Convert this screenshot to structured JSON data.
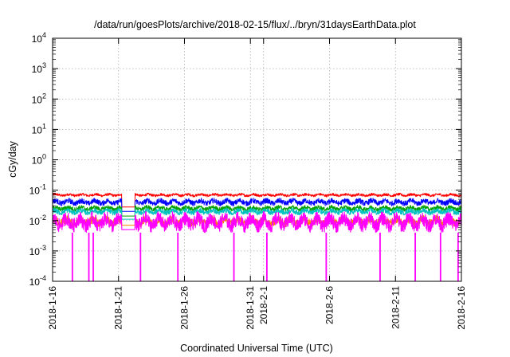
{
  "chart_data": {
    "type": "line",
    "title": "/data/run/goesPlots/archive/2018-02-15/flux/../bryn/31daysEarthData.plot",
    "xlabel": "Coordinated Universal Time (UTC)",
    "ylabel": "cGy/day",
    "x_scale": "time",
    "y_scale": "log",
    "xlim": [
      "2018-01-16",
      "2018-02-16"
    ],
    "ylim": [
      0.0001,
      10000
    ],
    "grid": true,
    "legend": "none",
    "x_ticks": [
      "2018-1-16",
      "2018-1-21",
      "2018-1-26",
      "2018-1-31",
      "2018-2-1",
      "2018-2-6",
      "2018-2-11",
      "2018-2-16"
    ],
    "y_ticks": [
      {
        "value": 0.0001,
        "base": "10",
        "exp": "-4"
      },
      {
        "value": 0.001,
        "base": "10",
        "exp": "-3"
      },
      {
        "value": 0.01,
        "base": "10",
        "exp": "-2"
      },
      {
        "value": 0.1,
        "base": "10",
        "exp": "-1"
      },
      {
        "value": 1,
        "base": "10",
        "exp": "0"
      },
      {
        "value": 10,
        "base": "10",
        "exp": "1"
      },
      {
        "value": 100,
        "base": "10",
        "exp": "2"
      },
      {
        "value": 1000,
        "base": "10",
        "exp": "3"
      },
      {
        "value": 10000,
        "base": "10",
        "exp": "4"
      }
    ],
    "gap": {
      "start": "2018-01-21 06:00",
      "end": "2018-01-22 06:00"
    },
    "series": [
      {
        "color": "#ff0000",
        "typical": 0.07,
        "band": [
          0.06,
          0.08
        ],
        "gap_value": 0.028
      },
      {
        "color": "#0000ff",
        "typical": 0.04,
        "band": [
          0.03,
          0.055
        ],
        "gap_value": 0.02
      },
      {
        "color": "#00a000",
        "typical": 0.025,
        "band": [
          0.02,
          0.032
        ],
        "gap_value": 0.014
      },
      {
        "color": "#00c0c0",
        "typical": 0.02,
        "band": [
          0.015,
          0.026
        ],
        "gap_value": 0.011
      },
      {
        "color": "#ff8000",
        "typical": 0.01,
        "band": [
          0.006,
          0.015
        ],
        "gap_value": 0.007
      },
      {
        "color": "#ff00ff",
        "typical": 0.008,
        "band": [
          0.004,
          0.02
        ],
        "gap_value": 0.005
      }
    ],
    "dropouts_to_min": [
      "2018-01-17 12:00",
      "2018-01-18 18:00",
      "2018-01-19 02:00",
      "2018-01-22 16:00",
      "2018-01-25 12:00",
      "2018-01-29 18:00",
      "2018-02-01 06:00",
      "2018-02-05 18:00",
      "2018-02-09 20:00",
      "2018-02-12 12:00",
      "2018-02-14 10:00",
      "2018-02-15 18:00"
    ]
  }
}
